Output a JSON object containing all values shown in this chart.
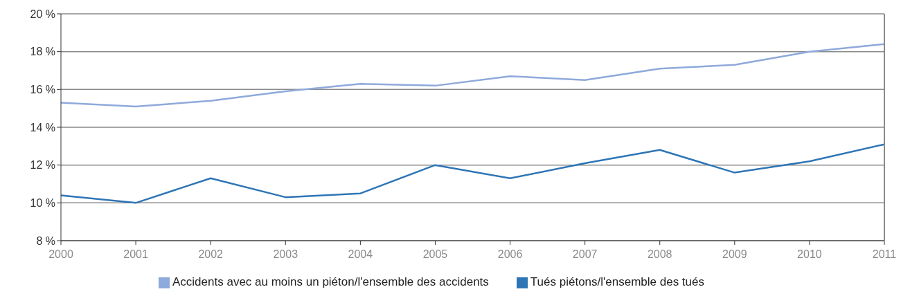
{
  "chart_data": {
    "type": "line",
    "x": [
      2000,
      2001,
      2002,
      2003,
      2004,
      2005,
      2006,
      2007,
      2008,
      2009,
      2010,
      2011
    ],
    "xlim": [
      2000,
      2011
    ],
    "xticks": [
      2000,
      2001,
      2002,
      2003,
      2004,
      2005,
      2006,
      2007,
      2008,
      2009,
      2010,
      2011
    ],
    "ylim": [
      8,
      20
    ],
    "yticks": [
      {
        "value": 8,
        "label": "8 %"
      },
      {
        "value": 10,
        "label": "10 %"
      },
      {
        "value": 12,
        "label": "12 %"
      },
      {
        "value": 14,
        "label": "14 %"
      },
      {
        "value": 16,
        "label": "16 %"
      },
      {
        "value": 18,
        "label": "18 %"
      },
      {
        "value": 20,
        "label": "20 %"
      }
    ],
    "series": [
      {
        "name": "Accidents avec au moins un piéton/l'ensemble des accidents",
        "color": "#8ea9db",
        "values": [
          15.3,
          15.1,
          15.4,
          15.9,
          16.3,
          16.2,
          16.7,
          16.5,
          17.1,
          17.3,
          18.0,
          18.4
        ]
      },
      {
        "name": "Tués piétons/l'ensemble des tués",
        "color": "#2e75b6",
        "values": [
          10.4,
          10.0,
          11.3,
          10.3,
          10.5,
          12.0,
          11.3,
          12.1,
          12.8,
          11.6,
          12.2,
          13.1
        ]
      }
    ],
    "grid": "y",
    "legend": "bottom",
    "marker": "none",
    "line_style": "solid"
  }
}
